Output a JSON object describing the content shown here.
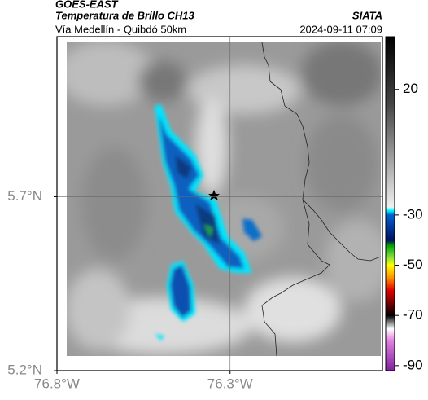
{
  "chart_data": {
    "type": "map",
    "title": "GOES-EAST",
    "subtitle": "Temperatura de Brillo CH13",
    "source": "SIATA",
    "route": "Vía Medellín - Quibdó 50km",
    "datetime": "2024-09-11 07:09",
    "xlim": [
      -76.8,
      -75.86
    ],
    "ylim": [
      5.2,
      6.16
    ],
    "xticks": [
      {
        "value": -76.8,
        "label": "76.8°W"
      },
      {
        "value": -76.3,
        "label": "76.3°W"
      }
    ],
    "yticks": [
      {
        "value": 5.2,
        "label": "5.2°N"
      },
      {
        "value": 5.7,
        "label": "5.7°N"
      }
    ],
    "grid": true,
    "colorbar": {
      "lim": [
        -92,
        41
      ],
      "ticks": [
        20,
        -30,
        -50,
        -70,
        -90
      ]
    }
  }
}
